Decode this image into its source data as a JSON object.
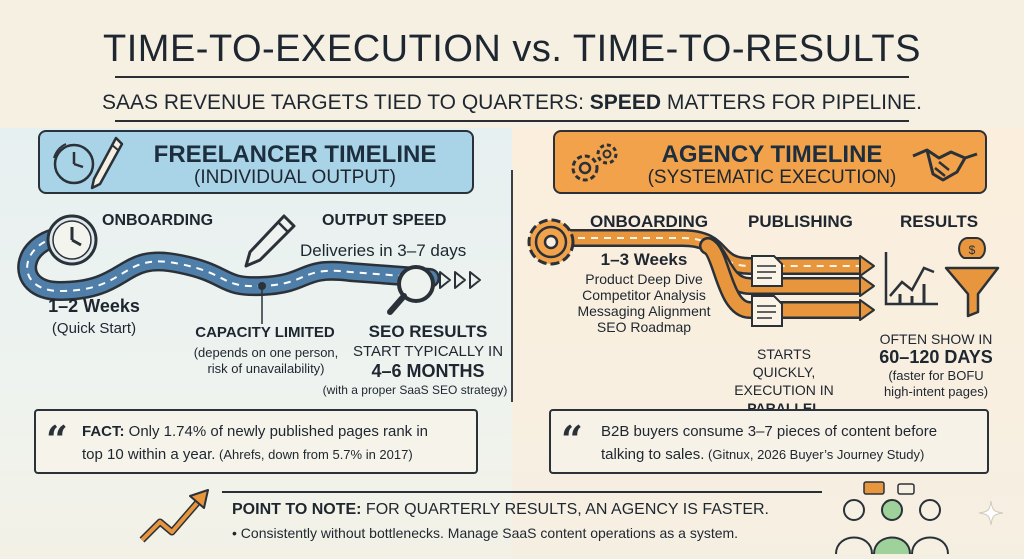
{
  "title": "TIME-TO-EXECUTION vs. TIME-TO-RESULTS",
  "subtitle_prefix": "SAAS REVENUE TARGETS TIED TO QUARTERS: ",
  "subtitle_bold": "SPEED",
  "subtitle_suffix": " MATTERS FOR PIPELINE.",
  "freelancer": {
    "title": "FREELANCER TIMELINE",
    "subtitle": "(INDIVIDUAL OUTPUT)",
    "onboarding_label": "ONBOARDING",
    "onboarding_duration": "1–2 Weeks",
    "onboarding_note": "(Quick Start)",
    "output_label": "OUTPUT SPEED",
    "output_note": "Deliveries in 3–7 days",
    "capacity_label": "CAPACITY LIMITED",
    "capacity_note_1": "(depends on one person,",
    "capacity_note_2": "risk of unavailability)",
    "seo_label": "SEO RESULTS",
    "seo_line": "START TYPICALLY IN",
    "seo_duration": "4–6 MONTHS",
    "seo_note": "(with a proper SaaS SEO strategy)",
    "fact_bold": "FACT:",
    "fact_line1": " Only 1.74% of newly published pages rank in",
    "fact_line2": "top 10 within a year.",
    "fact_source": " (Ahrefs, down from 5.7% in 2017)"
  },
  "agency": {
    "title": "AGENCY TIMELINE",
    "subtitle": "(SYSTEMATIC EXECUTION)",
    "onboarding_label": "ONBOARDING",
    "onboarding_duration": "1–3 Weeks",
    "onboarding_items": [
      "Product Deep Dive",
      "Competitor Analysis",
      "Messaging Alignment",
      "SEO Roadmap"
    ],
    "publishing_label": "PUBLISHING",
    "publishing_note_1": "STARTS QUICKLY,",
    "publishing_note_2": "EXECUTION IN",
    "publishing_note_3": "PARALLEL",
    "results_label": "RESULTS",
    "results_line": "OFTEN SHOW IN",
    "results_duration": "60–120 DAYS",
    "results_note_1": "(faster for BOFU",
    "results_note_2": "high-intent pages)",
    "fact_line1": "B2B buyers consume 3–7 pieces of content before",
    "fact_line2": "talking to sales.",
    "fact_source": " (Gitnux, 2026 Buyer’s Journey Study)"
  },
  "note": {
    "bold": "POINT TO NOTE:",
    "text": " FOR QUARTERLY RESULTS, AN AGENCY IS FASTER.",
    "bullet": "• Consistently without bottlenecks. Manage SaaS content operations as a system."
  },
  "icons": [
    "clock-icon",
    "pencil-icon",
    "gears-icon",
    "handshake-icon",
    "magnifier-icon",
    "document-icon",
    "chart-icon",
    "funnel-icon",
    "people-icon",
    "trend-arrow-icon",
    "sparkle-icon"
  ],
  "colors": {
    "freelancer_accent": "#a9d3e6",
    "agency_accent": "#f2a24a",
    "road_blue": "#4f7fa8",
    "road_orange": "#e8963e"
  }
}
